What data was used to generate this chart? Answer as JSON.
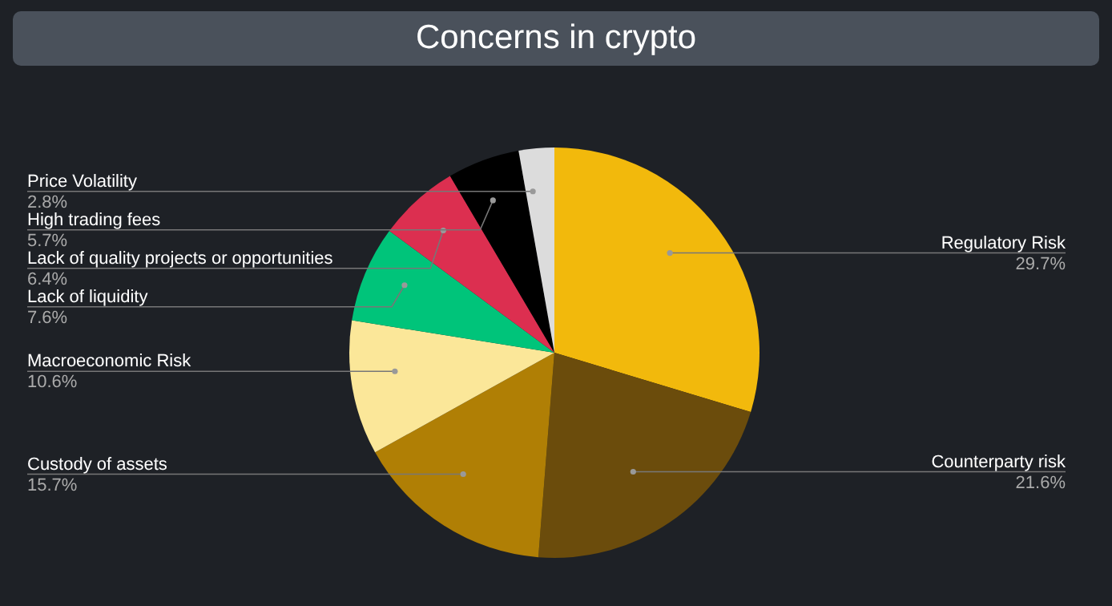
{
  "chart_data": {
    "type": "pie",
    "title": "Concerns in crypto",
    "categories": [
      "Regulatory Risk",
      "Counterparty risk",
      "Custody of assets",
      "Macroeconomic Risk",
      "Lack of liquidity",
      "Lack of quality projects or opportunities",
      "High trading fees",
      "Price Volatility"
    ],
    "values": [
      29.7,
      21.6,
      15.7,
      10.6,
      7.6,
      6.4,
      5.7,
      2.8
    ],
    "value_labels": [
      "29.7%",
      "21.6%",
      "15.7%",
      "10.6%",
      "7.6%",
      "6.4%",
      "5.7%",
      "2.8%"
    ],
    "colors": [
      "#f2b90c",
      "#6b4c0c",
      "#b07f05",
      "#fbe799",
      "#00c47a",
      "#dc2f50",
      "#000000",
      "#dcdcdc"
    ]
  }
}
